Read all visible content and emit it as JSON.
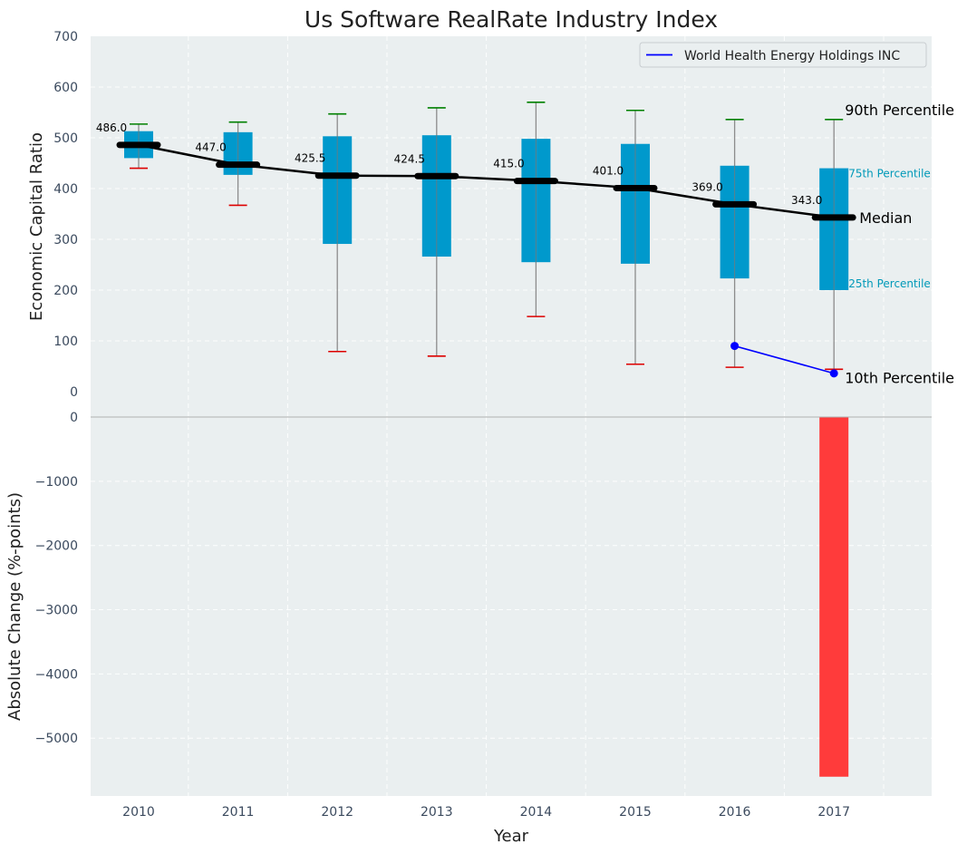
{
  "chart_data": [
    {
      "type": "box",
      "title": "Us Software RealRate Industry Index",
      "ylabel": "Economic Capital Ratio",
      "ylim": [
        0,
        700
      ],
      "yticks": [
        "0",
        "100",
        "200",
        "300",
        "400",
        "500",
        "600",
        "700"
      ],
      "categories": [
        "2010",
        "2011",
        "2012",
        "2013",
        "2014",
        "2015",
        "2016",
        "2017"
      ],
      "p10": [
        440,
        367,
        79,
        70,
        148,
        54,
        48,
        44
      ],
      "p25": [
        460,
        427,
        291,
        266,
        255,
        252,
        223,
        200
      ],
      "median": [
        486.0,
        447.0,
        425.5,
        424.5,
        415.0,
        401.0,
        369.0,
        343.0
      ],
      "median_labels": [
        "486.0",
        "447.0",
        "425.5",
        "424.5",
        "415.0",
        "401.0",
        "369.0",
        "343.0"
      ],
      "p75": [
        513,
        511,
        503,
        505,
        498,
        488,
        445,
        440
      ],
      "p90": [
        527,
        531,
        547,
        559,
        570,
        554,
        536,
        536
      ],
      "company_series": {
        "name": "World Health Energy Holdings INC",
        "x": [
          "2016",
          "2017"
        ],
        "values": [
          90,
          36
        ]
      },
      "annotations": {
        "p90": "90th Percentile",
        "p75": "75th Percentile",
        "median": "Median",
        "p25": "25th Percentile",
        "p10": "10th Percentile"
      },
      "legend": {
        "placement": "top-right",
        "entries": [
          "World Health Energy Holdings INC"
        ]
      },
      "grid": true
    },
    {
      "type": "bar",
      "xlabel": "Year",
      "ylabel": "Absolute Change (%-points)",
      "ylim": [
        -5900,
        0
      ],
      "yticks": [
        "0",
        "−1000",
        "−2000",
        "−3000",
        "−4000",
        "−5000"
      ],
      "categories": [
        "2010",
        "2011",
        "2012",
        "2013",
        "2014",
        "2015",
        "2016",
        "2017"
      ],
      "values": [
        null,
        null,
        null,
        null,
        null,
        null,
        null,
        -5600
      ],
      "grid": true
    }
  ],
  "colors": {
    "plot_bg": "#eaeff0",
    "box_fill": "#0099cc",
    "median_line": "#000000",
    "whisker": "#8c8c8c",
    "cap_high": "#008000",
    "cap_low": "#dd0000",
    "company_line": "#0000ff",
    "bar_negative": "#ff3b3b",
    "p75_label": "#0099b8",
    "p25_label": "#0099b8"
  }
}
